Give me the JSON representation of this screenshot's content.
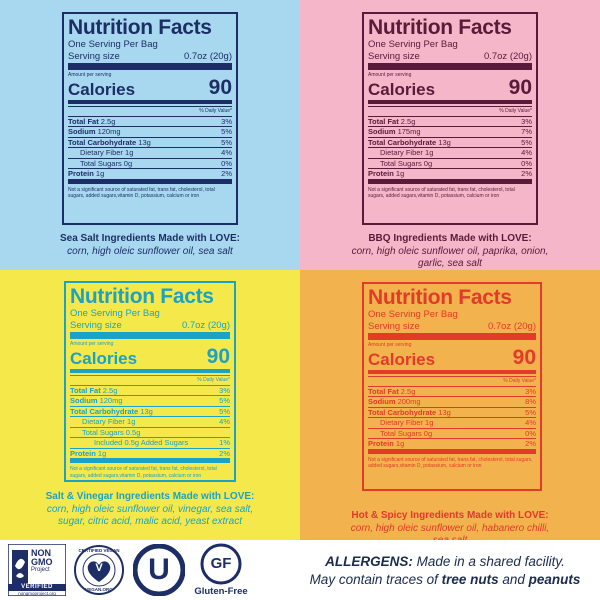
{
  "panels": [
    {
      "bg": "#a8d8ef",
      "ink": "#1d2e66",
      "title": "Nutrition Facts",
      "servings": "One Serving Per Bag",
      "serving_label": "Serving size",
      "serving_value": "0.7oz (20g)",
      "amount_per": "Amount per serving",
      "calories_label": "Calories",
      "calories_value": "90",
      "dv_header": "% Daily Value*",
      "nutrients": [
        {
          "name": "Total Fat",
          "amount": "2.5g",
          "dv": "3%",
          "bold": true,
          "indent": 0
        },
        {
          "name": "Sodium",
          "amount": "120mg",
          "dv": "5%",
          "bold": true,
          "indent": 0
        },
        {
          "name": "Total Carbohydrate",
          "amount": "13g",
          "dv": "5%",
          "bold": true,
          "indent": 0
        },
        {
          "name": "Dietary Fiber",
          "amount": "1g",
          "dv": "4%",
          "bold": false,
          "indent": 1
        },
        {
          "name": "Total Sugars",
          "amount": "0g",
          "dv": "0%",
          "bold": false,
          "indent": 1
        },
        {
          "name": "Protein",
          "amount": "1g",
          "dv": "2%",
          "bold": true,
          "indent": 0
        }
      ],
      "footnote": "Not a significant source of saturated fat, trans fat, cholesterol, total sugars, added sugars,vitamin D, potassium, calcium or iron",
      "ingredients_heading": "Sea Salt Ingredients Made with LOVE:",
      "ingredients_lines": [
        "corn, high oleic sunflower oil, sea salt"
      ]
    },
    {
      "bg": "#f4b6c8",
      "ink": "#5a1a3a",
      "title": "Nutrition Facts",
      "servings": "One Serving Per Bag",
      "serving_label": "Serving size",
      "serving_value": "0.7oz (20g)",
      "amount_per": "Amount per serving",
      "calories_label": "Calories",
      "calories_value": "90",
      "dv_header": "% Daily Value*",
      "nutrients": [
        {
          "name": "Total Fat",
          "amount": "2.5g",
          "dv": "3%",
          "bold": true,
          "indent": 0
        },
        {
          "name": "Sodium",
          "amount": "175mg",
          "dv": "7%",
          "bold": true,
          "indent": 0
        },
        {
          "name": "Total Carbohydrate",
          "amount": "13g",
          "dv": "5%",
          "bold": true,
          "indent": 0
        },
        {
          "name": "Dietary Fiber",
          "amount": "1g",
          "dv": "4%",
          "bold": false,
          "indent": 1
        },
        {
          "name": "Total Sugars",
          "amount": "0g",
          "dv": "0%",
          "bold": false,
          "indent": 1
        },
        {
          "name": "Protein",
          "amount": "1g",
          "dv": "2%",
          "bold": true,
          "indent": 0
        }
      ],
      "footnote": "Not a significant source of saturated fat, trans fat, cholesterol, total sugars, added sugars,vitamin D, potassium, calcium or iron",
      "ingredients_heading": "BBQ Ingredients Made with LOVE:",
      "ingredients_lines": [
        "corn, high oleic sunflower oil, paprika, onion,",
        "garlic, sea salt"
      ]
    },
    {
      "bg": "#f5e84a",
      "ink": "#1aa3c4",
      "title": "Nutrition Facts",
      "servings": "One Serving Per Bag",
      "serving_label": "Serving size",
      "serving_value": "0.7oz (20g)",
      "amount_per": "Amount per serving",
      "calories_label": "Calories",
      "calories_value": "90",
      "dv_header": "% Daily Value*",
      "nutrients": [
        {
          "name": "Total Fat",
          "amount": "2.5g",
          "dv": "3%",
          "bold": true,
          "indent": 0
        },
        {
          "name": "Sodium",
          "amount": "120mg",
          "dv": "5%",
          "bold": true,
          "indent": 0
        },
        {
          "name": "Total Carbohydrate",
          "amount": "13g",
          "dv": "5%",
          "bold": true,
          "indent": 0
        },
        {
          "name": "Dietary Fiber",
          "amount": "1g",
          "dv": "4%",
          "bold": false,
          "indent": 1
        },
        {
          "name": "Total Sugars",
          "amount": "0.5g",
          "dv": "",
          "bold": false,
          "indent": 1
        },
        {
          "name": "Included 0.5g Added Sugars",
          "amount": "",
          "dv": "1%",
          "bold": false,
          "indent": 2
        },
        {
          "name": "Protein",
          "amount": "1g",
          "dv": "2%",
          "bold": true,
          "indent": 0
        }
      ],
      "footnote": "Not a significant source of saturated fat, trans fat, cholesterol, total sugars, added sugars,vitamin D, potassium, calcium or iron",
      "ingredients_heading": "Salt & Vinegar Ingredients Made with LOVE:",
      "ingredients_lines": [
        "corn, high oleic sunflower oil, vinegar, sea salt,",
        "sugar, citric acid, malic acid, yeast extract"
      ]
    },
    {
      "bg": "#f2b24e",
      "ink": "#e23b2a",
      "title": "Nutrition Facts",
      "servings": "One Serving Per Bag",
      "serving_label": "Serving size",
      "serving_value": "0.7oz (20g)",
      "amount_per": "Amount per serving",
      "calories_label": "Calories",
      "calories_value": "90",
      "dv_header": "% Daily Value*",
      "nutrients": [
        {
          "name": "Total Fat",
          "amount": "2.5g",
          "dv": "3%",
          "bold": true,
          "indent": 0
        },
        {
          "name": "Sodium",
          "amount": "200mg",
          "dv": "8%",
          "bold": true,
          "indent": 0
        },
        {
          "name": "Total Carbohydrate",
          "amount": "13g",
          "dv": "5%",
          "bold": true,
          "indent": 0
        },
        {
          "name": "Dietary Fiber",
          "amount": "1g",
          "dv": "4%",
          "bold": false,
          "indent": 1
        },
        {
          "name": "Total Sugars",
          "amount": "0g",
          "dv": "0%",
          "bold": false,
          "indent": 1
        },
        {
          "name": "Protein",
          "amount": "1g",
          "dv": "2%",
          "bold": true,
          "indent": 0
        }
      ],
      "footnote": "Not a significant source of saturated fat, trans fat, cholesterol, total sugars, added sugars,vitamin D, potassium, calcium or iron",
      "ingredients_heading": "Hot & Spicy Ingredients Made with LOVE:",
      "ingredients_lines": [
        "corn, high oleic sunflower oil, habanero chilli,",
        "sea salt"
      ]
    }
  ],
  "badges": {
    "nongmo": {
      "top": "NON",
      "mid": "GMO",
      "sub": "Project",
      "verified": "VERIFIED",
      "url": "nongmoproject.org",
      "icon": "butterfly-icon",
      "color": "#1d2e66"
    },
    "vegan": {
      "outer": "CERTIFIED VEGAN",
      "bottom": "VEGAN.ORG",
      "letter": "V",
      "color": "#1d2e66"
    },
    "kosher": {
      "letter": "U",
      "color": "#1d2e66"
    },
    "gluten_free": {
      "letters": "GF",
      "label": "Gluten-Free",
      "color": "#1d2e66"
    }
  },
  "allergens": {
    "label": "ALLERGENS:",
    "line1_rest": " Made in a shared facility.",
    "line2_prefix": "May contain traces of ",
    "item1": "tree nuts",
    "joiner": " and ",
    "item2": "peanuts"
  }
}
